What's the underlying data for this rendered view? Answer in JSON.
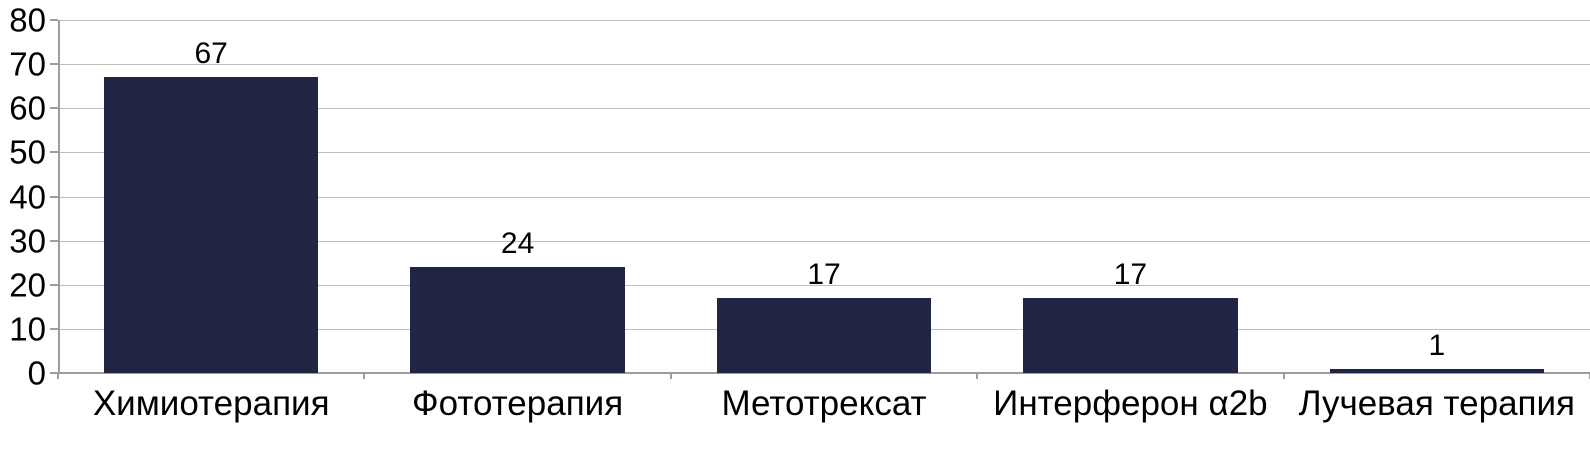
{
  "chart_data": {
    "type": "bar",
    "categories": [
      "Химиотерапия",
      "Фототерапия",
      "Метотрексат",
      "Интерферон α2b",
      "Лучевая терапия"
    ],
    "values": [
      67,
      24,
      17,
      17,
      1
    ],
    "yticks": [
      "0",
      "10",
      "20",
      "30",
      "40",
      "50",
      "60",
      "70",
      "80"
    ],
    "title": "",
    "xlabel": "",
    "ylabel": "",
    "ylim": [
      0,
      80
    ],
    "grid": true,
    "legend": false,
    "colors": {
      "bar": "#1f2543",
      "gridline": "#bdbdbd",
      "axis": "#9d9d9d",
      "text": "#000000",
      "background": "#ffffff"
    }
  }
}
